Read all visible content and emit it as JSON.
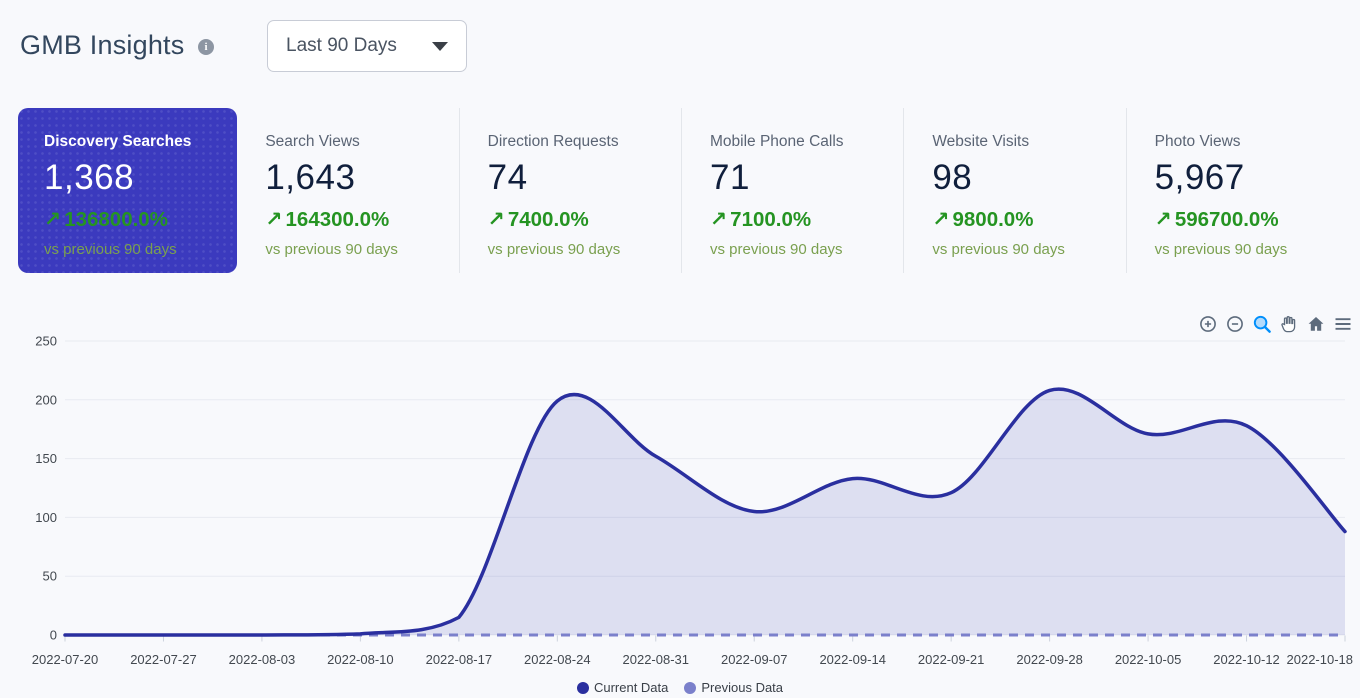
{
  "header": {
    "title": "GMB Insights",
    "period_selector": {
      "value": "Last 90 Days"
    }
  },
  "icons": {
    "info": "i",
    "trend_up": "↗"
  },
  "stats": {
    "vs_label": "vs previous 90 days",
    "cards": [
      {
        "label": "Discovery Searches",
        "value": "1,368",
        "change": "136800.0%",
        "selected": true
      },
      {
        "label": "Search Views",
        "value": "1,643",
        "change": "164300.0%",
        "selected": false
      },
      {
        "label": "Direction Requests",
        "value": "74",
        "change": "7400.0%",
        "selected": false
      },
      {
        "label": "Mobile Phone Calls",
        "value": "71",
        "change": "7100.0%",
        "selected": false
      },
      {
        "label": "Website Visits",
        "value": "98",
        "change": "9800.0%",
        "selected": false
      },
      {
        "label": "Photo Views",
        "value": "5,967",
        "change": "596700.0%",
        "selected": false
      }
    ]
  },
  "chart_toolbar": {
    "tools": [
      "zoom-in",
      "zoom-out",
      "selection-zoom",
      "pan",
      "home",
      "menu"
    ],
    "active_tool": "selection-zoom",
    "icon_color": "#5d6b7c",
    "active_color": "#008FFB"
  },
  "chart_data": {
    "type": "area",
    "title": "",
    "xlabel": "",
    "ylabel": "",
    "x": [
      "2022-07-20",
      "2022-07-27",
      "2022-08-03",
      "2022-08-10",
      "2022-08-17",
      "2022-08-24",
      "2022-08-31",
      "2022-09-07",
      "2022-09-14",
      "2022-09-21",
      "2022-09-28",
      "2022-10-05",
      "2022-10-12",
      "2022-10-18"
    ],
    "series": [
      {
        "name": "Current Data",
        "values": [
          0,
          0,
          0,
          1,
          15,
          199,
          152,
          105,
          133,
          121,
          208,
          171,
          178,
          88
        ],
        "color": "#2a2f9f",
        "style": "solid-smooth-area"
      },
      {
        "name": "Previous Data",
        "values": [
          0,
          0,
          0,
          0,
          0,
          0,
          0,
          0,
          0,
          0,
          0,
          0,
          0,
          0
        ],
        "color": "#7b80cb",
        "style": "dashed"
      }
    ],
    "ylim": [
      0,
      250
    ],
    "yticks": [
      0,
      50,
      100,
      150,
      200,
      250
    ],
    "grid": true,
    "legend_position": "bottom",
    "fill_color": "rgba(83,88,188,0.16)"
  },
  "colors": {
    "page_bg": "#f8f9fc",
    "selected_card_bg": "#3b3abe",
    "positive_green": "#259422",
    "compare_green": "#7aa04f",
    "value_navy": "#101f3c",
    "grid_line": "#e8eaf1",
    "axis_text": "#42484f"
  }
}
